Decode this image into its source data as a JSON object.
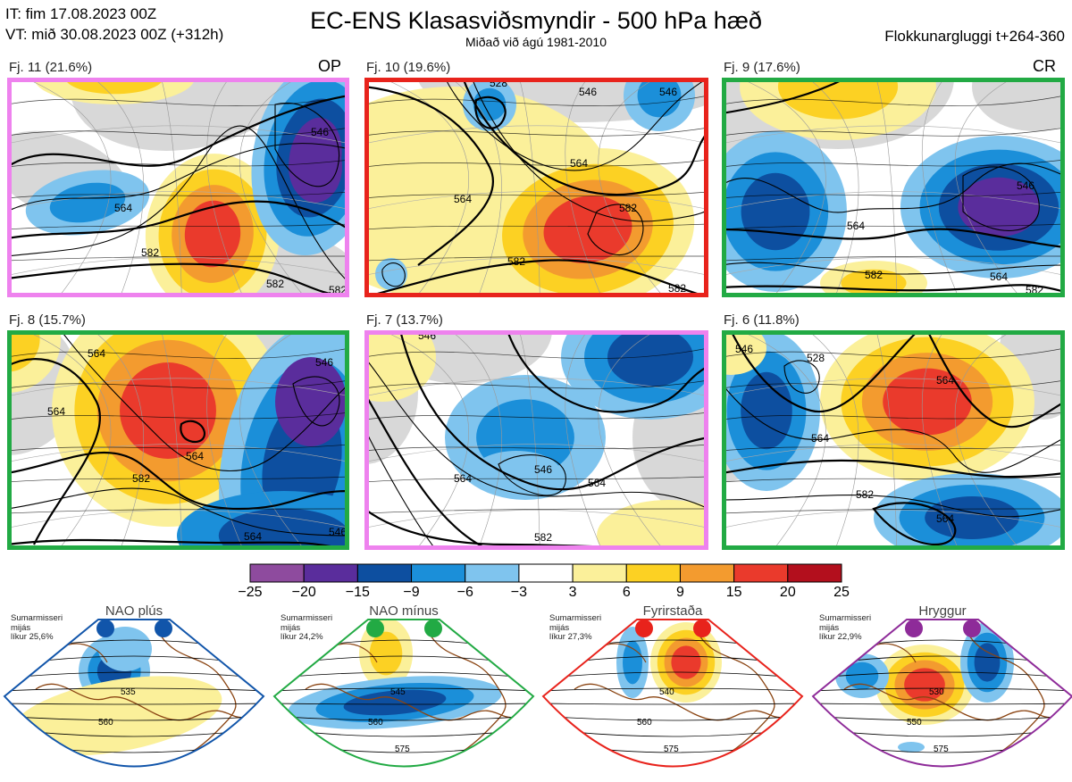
{
  "header": {
    "it_line": "IT: fim 17.08.2023 00Z",
    "vt_line": "VT: mið 30.08.2023 00Z  (+312h)",
    "title": "EC-ENS Klasasviðsmyndir - 500 hPa hæð",
    "subtitle": "Miðað við ágú 1981-2010",
    "window": "Flokkunargluggi t+264-360"
  },
  "colors": {
    "pink": "#ee82ee",
    "red": "#e8231c",
    "green": "#22aa44",
    "blue": "#1155aa",
    "purple": "#8e2b99"
  },
  "panels": [
    {
      "label": "Fj. 11 (21.6%)",
      "tag": "OP",
      "border": "pink",
      "contours": [
        "546",
        "564",
        "582",
        "582",
        "582"
      ]
    },
    {
      "label": "Fj. 10 (19.6%)",
      "tag": "",
      "border": "red",
      "contours": [
        "564",
        "528",
        "546",
        "564",
        "582",
        "582",
        "582",
        "546"
      ]
    },
    {
      "label": "Fj. 9 (17.6%)",
      "tag": "CR",
      "border": "green",
      "contours": [
        "546",
        "564",
        "582",
        "564",
        "582"
      ]
    },
    {
      "label": "Fj. 8 (15.7%)",
      "tag": "",
      "border": "green",
      "contours": [
        "546",
        "564",
        "564",
        "582",
        "564",
        "546",
        "564"
      ]
    },
    {
      "label": "Fj. 7 (13.7%)",
      "tag": "",
      "border": "pink",
      "contours": [
        "546",
        "564",
        "546",
        "564",
        "582"
      ]
    },
    {
      "label": "Fj. 6 (11.8%)",
      "tag": "",
      "border": "green",
      "contours": [
        "546",
        "528",
        "564",
        "564",
        "582",
        "564"
      ]
    }
  ],
  "chart_data": {
    "type": "heatmap",
    "title": "EC-ENS Klasasviðsmyndir - 500 hPa hæð",
    "subtitle": "Miðað við ágú 1981-2010",
    "colorbar": {
      "ticks": [
        "−25",
        "−20",
        "−15",
        "−9",
        "−6",
        "−3",
        "3",
        "6",
        "9",
        "15",
        "20",
        "25"
      ],
      "colors": [
        "#8e4b9e",
        "#5a2d9c",
        "#0d4fa0",
        "#1b8fd9",
        "#7fc4ee",
        "#ffffff",
        "#fbf09a",
        "#fcd123",
        "#f39b2f",
        "#ea3a2c",
        "#b30f1d"
      ]
    }
  },
  "regimes": [
    {
      "name": "NAO plús",
      "info": "Sumarmisseri\nmijás\nlíkur 25,6%",
      "color": "blue",
      "contours": [
        "535",
        "560"
      ]
    },
    {
      "name": "NAO mínus",
      "info": "Sumarmisseri\nmijás\nlíkur 24,2%",
      "color": "green",
      "contours": [
        "545",
        "560",
        "575"
      ]
    },
    {
      "name": "Fyrirstaða",
      "info": "Sumarmisseri\nmijás\nlíkur 27,3%",
      "color": "red",
      "contours": [
        "540",
        "560",
        "575"
      ]
    },
    {
      "name": "Hryggur",
      "info": "Sumarmisseri\nmijás\nlíkur 22,9%",
      "color": "purple",
      "contours": [
        "530",
        "550",
        "575"
      ]
    }
  ]
}
